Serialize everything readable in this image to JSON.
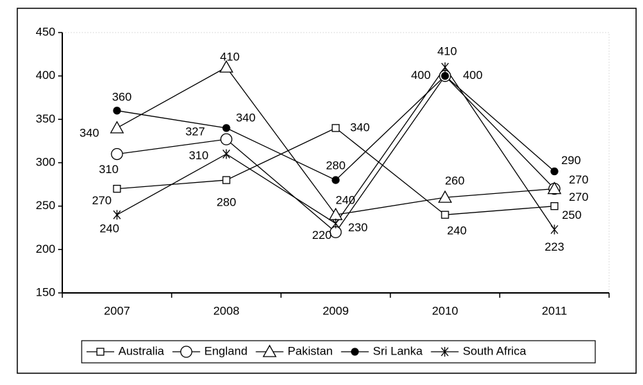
{
  "chart_data": {
    "type": "line",
    "categories": [
      "2007",
      "2008",
      "2009",
      "2010",
      "2011"
    ],
    "series": [
      {
        "name": "Australia",
        "color": "#000000",
        "marker": "square",
        "values": [
          270,
          280,
          340,
          240,
          250
        ]
      },
      {
        "name": "England",
        "color": "#000000",
        "marker": "circle",
        "values": [
          310,
          327,
          220,
          400,
          270
        ]
      },
      {
        "name": "Pakistan",
        "color": "#000000",
        "marker": "triangle",
        "values": [
          340,
          410,
          240,
          260,
          270
        ]
      },
      {
        "name": "Sri Lanka",
        "color": "#000000",
        "marker": "dot",
        "values": [
          360,
          340,
          280,
          400,
          290
        ]
      },
      {
        "name": "South Africa",
        "color": "#000000",
        "marker": "star",
        "values": [
          240,
          310,
          230,
          410,
          223
        ]
      }
    ],
    "ylim": [
      150,
      450
    ],
    "yticks": [
      150,
      200,
      250,
      300,
      350,
      400,
      450
    ],
    "grid": false,
    "legend": "bottom"
  }
}
